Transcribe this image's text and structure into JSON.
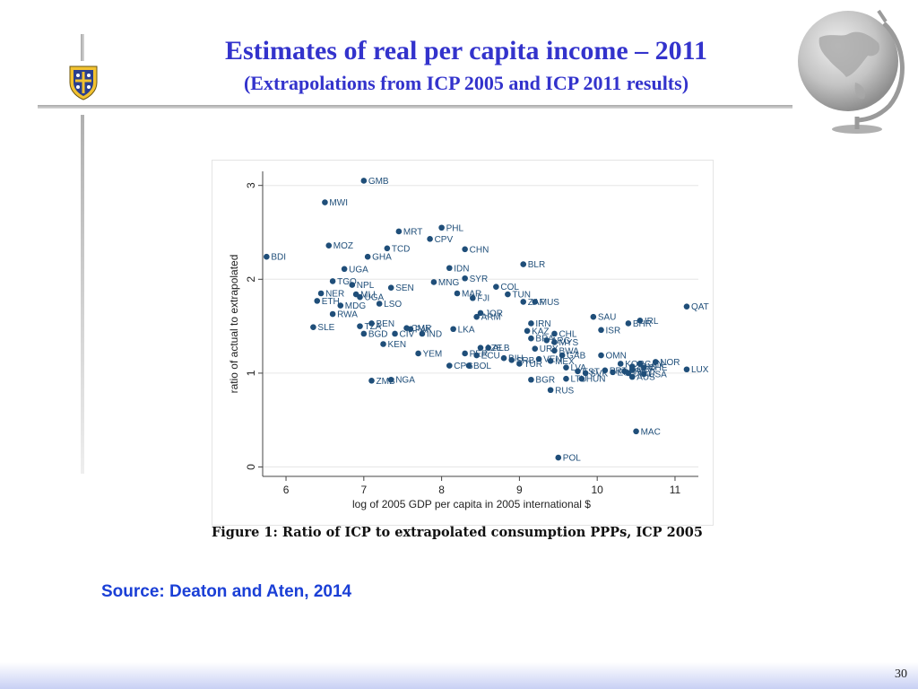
{
  "slide": {
    "title": "Estimates of real  per capita income – 2011",
    "subtitle": "(Extrapolations from ICP 2005 and ICP 2011 results)",
    "caption": "Figure 1: Ratio of ICP to extrapolated consumption PPPs, ICP 2005",
    "source": "Source: Deaton and Aten, 2014",
    "page_number": "30"
  },
  "icons": {
    "crest": "university-crest-icon",
    "globe": "globe-icon"
  },
  "colors": {
    "title": "#3333cc",
    "source": "#1a3fd6",
    "marker": "#1f4e79"
  },
  "chart_data": {
    "type": "scatter",
    "title": "",
    "xlabel": "log of 2005 GDP per capita in 2005 international $",
    "ylabel": "ratio of actual to extrapolated",
    "xlim": [
      5.7,
      11.3
    ],
    "ylim": [
      -0.1,
      3.15
    ],
    "xticks": [
      6,
      7,
      8,
      9,
      10,
      11
    ],
    "yticks": [
      0,
      1,
      2,
      3
    ],
    "grid": true,
    "points": [
      {
        "label": "GMB",
        "x": 7.0,
        "y": 3.05
      },
      {
        "label": "MWI",
        "x": 6.5,
        "y": 2.82
      },
      {
        "label": "PHL",
        "x": 8.0,
        "y": 2.55
      },
      {
        "label": "MRT",
        "x": 7.45,
        "y": 2.51
      },
      {
        "label": "CPV",
        "x": 7.85,
        "y": 2.43
      },
      {
        "label": "MOZ",
        "x": 6.55,
        "y": 2.36
      },
      {
        "label": "TCD",
        "x": 7.3,
        "y": 2.33
      },
      {
        "label": "CHN",
        "x": 8.3,
        "y": 2.32
      },
      {
        "label": "BDI",
        "x": 5.75,
        "y": 2.24
      },
      {
        "label": "GHA",
        "x": 7.05,
        "y": 2.24
      },
      {
        "label": "BLR",
        "x": 9.05,
        "y": 2.16
      },
      {
        "label": "IDN",
        "x": 8.1,
        "y": 2.12
      },
      {
        "label": "UGA",
        "x": 6.75,
        "y": 2.11
      },
      {
        "label": "SYR",
        "x": 8.3,
        "y": 2.01
      },
      {
        "label": "TGO",
        "x": 6.6,
        "y": 1.98
      },
      {
        "label": "MNG",
        "x": 7.9,
        "y": 1.97
      },
      {
        "label": "NPL",
        "x": 6.85,
        "y": 1.94
      },
      {
        "label": "SEN",
        "x": 7.35,
        "y": 1.91
      },
      {
        "label": "COL",
        "x": 8.7,
        "y": 1.92
      },
      {
        "label": "NER",
        "x": 6.45,
        "y": 1.85
      },
      {
        "label": "MLI",
        "x": 6.9,
        "y": 1.84
      },
      {
        "label": "MAR",
        "x": 8.2,
        "y": 1.85
      },
      {
        "label": "TUN",
        "x": 8.85,
        "y": 1.84
      },
      {
        "label": "UGA",
        "x": 6.95,
        "y": 1.81
      },
      {
        "label": "FJI",
        "x": 8.4,
        "y": 1.8
      },
      {
        "label": "ETH",
        "x": 6.4,
        "y": 1.77
      },
      {
        "label": "ZAF",
        "x": 9.05,
        "y": 1.76
      },
      {
        "label": "MUS",
        "x": 9.2,
        "y": 1.76
      },
      {
        "label": "LSO",
        "x": 7.2,
        "y": 1.74
      },
      {
        "label": "MDG",
        "x": 6.7,
        "y": 1.72
      },
      {
        "label": "QAT",
        "x": 11.15,
        "y": 1.71
      },
      {
        "label": "JOR",
        "x": 8.5,
        "y": 1.64
      },
      {
        "label": "RWA",
        "x": 6.6,
        "y": 1.63
      },
      {
        "label": "ARM",
        "x": 8.45,
        "y": 1.6
      },
      {
        "label": "SAU",
        "x": 9.95,
        "y": 1.6
      },
      {
        "label": "IRL",
        "x": 10.55,
        "y": 1.56
      },
      {
        "label": "BHR",
        "x": 10.4,
        "y": 1.53
      },
      {
        "label": "BEN",
        "x": 7.1,
        "y": 1.53
      },
      {
        "label": "IRN",
        "x": 9.15,
        "y": 1.53
      },
      {
        "label": "TZA",
        "x": 6.95,
        "y": 1.5
      },
      {
        "label": "CMR",
        "x": 7.55,
        "y": 1.48
      },
      {
        "label": "PAK",
        "x": 7.6,
        "y": 1.47
      },
      {
        "label": "SLE",
        "x": 6.35,
        "y": 1.49
      },
      {
        "label": "LKA",
        "x": 8.15,
        "y": 1.47
      },
      {
        "label": "ISR",
        "x": 10.05,
        "y": 1.46
      },
      {
        "label": "KAZ",
        "x": 9.1,
        "y": 1.45
      },
      {
        "label": "BGD",
        "x": 7.0,
        "y": 1.42
      },
      {
        "label": "CIV",
        "x": 7.4,
        "y": 1.42
      },
      {
        "label": "IND",
        "x": 7.75,
        "y": 1.42
      },
      {
        "label": "CHL",
        "x": 9.45,
        "y": 1.42
      },
      {
        "label": "BRA",
        "x": 9.15,
        "y": 1.37
      },
      {
        "label": "ARG",
        "x": 9.35,
        "y": 1.35
      },
      {
        "label": "KEN",
        "x": 7.25,
        "y": 1.31
      },
      {
        "label": "MYS",
        "x": 9.45,
        "y": 1.33
      },
      {
        "label": "ALB",
        "x": 8.6,
        "y": 1.27
      },
      {
        "label": "AZE",
        "x": 8.5,
        "y": 1.27
      },
      {
        "label": "URY",
        "x": 9.2,
        "y": 1.26
      },
      {
        "label": "BWA",
        "x": 9.45,
        "y": 1.24
      },
      {
        "label": "PER",
        "x": 8.3,
        "y": 1.21
      },
      {
        "label": "YEM",
        "x": 7.7,
        "y": 1.21
      },
      {
        "label": "ECU",
        "x": 8.45,
        "y": 1.19
      },
      {
        "label": "GAB",
        "x": 9.55,
        "y": 1.19
      },
      {
        "label": "OMN",
        "x": 10.05,
        "y": 1.19
      },
      {
        "label": "BIH",
        "x": 8.8,
        "y": 1.16
      },
      {
        "label": "SRB",
        "x": 8.9,
        "y": 1.14
      },
      {
        "label": "VEN",
        "x": 9.25,
        "y": 1.15
      },
      {
        "label": "MEX",
        "x": 9.4,
        "y": 1.13
      },
      {
        "label": "TUR",
        "x": 9.0,
        "y": 1.1
      },
      {
        "label": "CPG",
        "x": 8.1,
        "y": 1.08
      },
      {
        "label": "BOL",
        "x": 8.35,
        "y": 1.08
      },
      {
        "label": "LVA",
        "x": 9.6,
        "y": 1.06
      },
      {
        "label": "NOR",
        "x": 10.75,
        "y": 1.12
      },
      {
        "label": "CAN",
        "x": 10.55,
        "y": 1.1
      },
      {
        "label": "KOR",
        "x": 10.3,
        "y": 1.1
      },
      {
        "label": "JPN",
        "x": 10.45,
        "y": 1.07
      },
      {
        "label": "CHE",
        "x": 10.6,
        "y": 1.06
      },
      {
        "label": "GBR",
        "x": 10.45,
        "y": 1.04
      },
      {
        "label": "FRA",
        "x": 10.35,
        "y": 1.02
      },
      {
        "label": "DEU",
        "x": 10.4,
        "y": 1.0
      },
      {
        "label": "ESP",
        "x": 10.2,
        "y": 1.01
      },
      {
        "label": "PRT",
        "x": 10.1,
        "y": 1.03
      },
      {
        "label": "SVK",
        "x": 9.85,
        "y": 1.0
      },
      {
        "label": "EST",
        "x": 9.75,
        "y": 1.02
      },
      {
        "label": "USA",
        "x": 10.6,
        "y": 0.99
      },
      {
        "label": "AUS",
        "x": 10.45,
        "y": 0.96
      },
      {
        "label": "LUX",
        "x": 11.15,
        "y": 1.04
      },
      {
        "label": "LTU",
        "x": 9.6,
        "y": 0.94
      },
      {
        "label": "HUN",
        "x": 9.8,
        "y": 0.94
      },
      {
        "label": "BGR",
        "x": 9.15,
        "y": 0.93
      },
      {
        "label": "ZMB",
        "x": 7.1,
        "y": 0.92
      },
      {
        "label": "NGA",
        "x": 7.35,
        "y": 0.93
      },
      {
        "label": "RUS",
        "x": 9.4,
        "y": 0.82
      },
      {
        "label": "MAC",
        "x": 10.5,
        "y": 0.38
      },
      {
        "label": "POL",
        "x": 9.5,
        "y": 0.1
      }
    ]
  }
}
